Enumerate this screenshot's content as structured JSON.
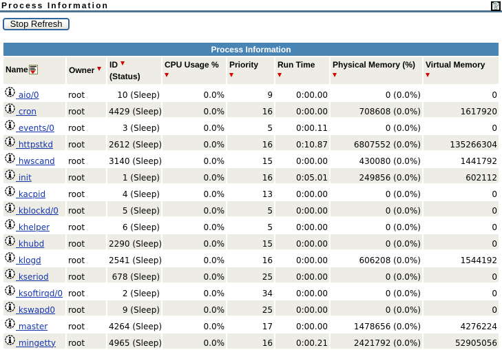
{
  "page": {
    "title": "Process Information",
    "help_label": "?"
  },
  "toolbar": {
    "stop_refresh_label": "Stop Refresh"
  },
  "colors": {
    "accent_blue": "#4884B4",
    "rule_blue": "#4E7492",
    "row_alt_gray": "#EEEDE5",
    "link_blue": "#1535AE",
    "sort_arrow_red": "#D50000"
  },
  "table": {
    "title": "Process Information",
    "columns": [
      {
        "label": "Name",
        "label2": "",
        "arrow": "filter-icon"
      },
      {
        "label": "Owner",
        "label2": "",
        "arrow": "inline"
      },
      {
        "label": "ID",
        "label2": "(Status)",
        "arrow": "inline"
      },
      {
        "label": "CPU Usage %",
        "label2": "",
        "arrow": "below"
      },
      {
        "label": "Priority",
        "label2": "",
        "arrow": "below"
      },
      {
        "label": "Run Time",
        "label2": "",
        "arrow": "below"
      },
      {
        "label": "Physical Memory (%)",
        "label2": "",
        "arrow": "below"
      },
      {
        "label": "Virtual Memory",
        "label2": "",
        "arrow": "below"
      }
    ],
    "rows": [
      {
        "name": "aio/0",
        "owner": "root",
        "id": "10 (Sleep)",
        "cpu": "0.0%",
        "priority": "9",
        "run_time": "0:00.00",
        "phys_mem": "0 (0.0%)",
        "virt_mem": "0"
      },
      {
        "name": "cron",
        "owner": "root",
        "id": "4429 (Sleep)",
        "cpu": "0.0%",
        "priority": "16",
        "run_time": "0:00.00",
        "phys_mem": "708608 (0.0%)",
        "virt_mem": "1617920"
      },
      {
        "name": "events/0",
        "owner": "root",
        "id": "3 (Sleep)",
        "cpu": "0.0%",
        "priority": "5",
        "run_time": "0:00.11",
        "phys_mem": "0 (0.0%)",
        "virt_mem": "0"
      },
      {
        "name": "httpstkd",
        "owner": "root",
        "id": "2612 (Sleep)",
        "cpu": "0.0%",
        "priority": "16",
        "run_time": "0:10.87",
        "phys_mem": "6807552 (0.0%)",
        "virt_mem": "135266304"
      },
      {
        "name": "hwscand",
        "owner": "root",
        "id": "3140 (Sleep)",
        "cpu": "0.0%",
        "priority": "15",
        "run_time": "0:00.00",
        "phys_mem": "430080 (0.0%)",
        "virt_mem": "1441792"
      },
      {
        "name": "init",
        "owner": "root",
        "id": "1 (Sleep)",
        "cpu": "0.0%",
        "priority": "16",
        "run_time": "0:05.01",
        "phys_mem": "249856 (0.0%)",
        "virt_mem": "602112"
      },
      {
        "name": "kacpid",
        "owner": "root",
        "id": "4 (Sleep)",
        "cpu": "0.0%",
        "priority": "13",
        "run_time": "0:00.00",
        "phys_mem": "0 (0.0%)",
        "virt_mem": "0"
      },
      {
        "name": "kblockd/0",
        "owner": "root",
        "id": "5 (Sleep)",
        "cpu": "0.0%",
        "priority": "5",
        "run_time": "0:00.00",
        "phys_mem": "0 (0.0%)",
        "virt_mem": "0"
      },
      {
        "name": "khelper",
        "owner": "root",
        "id": "6 (Sleep)",
        "cpu": "0.0%",
        "priority": "5",
        "run_time": "0:00.00",
        "phys_mem": "0 (0.0%)",
        "virt_mem": "0"
      },
      {
        "name": "khubd",
        "owner": "root",
        "id": "2290 (Sleep)",
        "cpu": "0.0%",
        "priority": "15",
        "run_time": "0:00.00",
        "phys_mem": "0 (0.0%)",
        "virt_mem": "0"
      },
      {
        "name": "klogd",
        "owner": "root",
        "id": "2541 (Sleep)",
        "cpu": "0.0%",
        "priority": "16",
        "run_time": "0:00.00",
        "phys_mem": "606208 (0.0%)",
        "virt_mem": "1544192"
      },
      {
        "name": "kseriod",
        "owner": "root",
        "id": "678 (Sleep)",
        "cpu": "0.0%",
        "priority": "25",
        "run_time": "0:00.00",
        "phys_mem": "0 (0.0%)",
        "virt_mem": "0"
      },
      {
        "name": "ksoftirqd/0",
        "owner": "root",
        "id": "2 (Sleep)",
        "cpu": "0.0%",
        "priority": "34",
        "run_time": "0:00.00",
        "phys_mem": "0 (0.0%)",
        "virt_mem": "0"
      },
      {
        "name": "kswapd0",
        "owner": "root",
        "id": "9 (Sleep)",
        "cpu": "0.0%",
        "priority": "25",
        "run_time": "0:00.00",
        "phys_mem": "0 (0.0%)",
        "virt_mem": "0"
      },
      {
        "name": "master",
        "owner": "root",
        "id": "4264 (Sleep)",
        "cpu": "0.0%",
        "priority": "17",
        "run_time": "0:00.00",
        "phys_mem": "1478656 (0.0%)",
        "virt_mem": "4276224"
      },
      {
        "name": "mingetty",
        "owner": "root",
        "id": "4965 (Sleep)",
        "cpu": "0.0%",
        "priority": "16",
        "run_time": "0:00.21",
        "phys_mem": "2421792 (0.0%)",
        "virt_mem": "52905056"
      }
    ]
  }
}
